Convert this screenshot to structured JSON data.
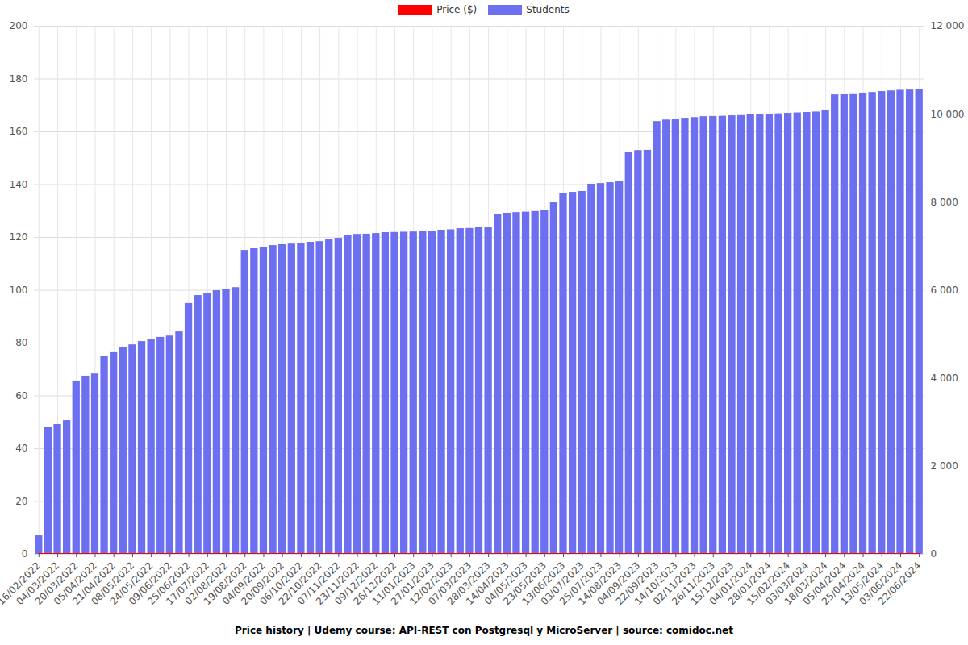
{
  "chart_data": {
    "type": "bar",
    "title": "Price history | Udemy course: API-REST con Postgresql y MicroServer | source: comidoc.net",
    "categories": [
      "16/02/2022",
      null,
      "04/03/2022",
      null,
      "20/03/2022",
      null,
      "05/04/2022",
      null,
      "21/04/2022",
      null,
      "08/05/2022",
      null,
      "24/05/2022",
      null,
      "09/06/2022",
      null,
      "25/06/2022",
      null,
      "17/07/2022",
      null,
      "02/08/2022",
      null,
      "19/08/2022",
      null,
      "04/09/2022",
      null,
      "20/09/2022",
      null,
      "06/10/2022",
      null,
      "22/10/2022",
      null,
      "07/11/2022",
      null,
      "23/11/2022",
      null,
      "09/12/2022",
      null,
      "26/12/2022",
      null,
      "11/01/2023",
      null,
      "27/01/2023",
      null,
      "12/02/2023",
      null,
      "07/03/2023",
      null,
      "28/03/2023",
      null,
      "14/04/2023",
      null,
      "04/05/2023",
      null,
      "23/05/2023",
      null,
      "13/06/2023",
      null,
      "03/07/2023",
      null,
      "25/07/2023",
      null,
      "14/08/2023",
      null,
      "04/09/2023",
      null,
      "22/09/2023",
      null,
      "14/10/2023",
      null,
      "02/11/2023",
      null,
      "26/11/2023",
      null,
      "15/12/2023",
      null,
      "04/01/2024",
      null,
      "28/01/2024",
      null,
      "15/02/2024",
      null,
      "03/03/2024",
      null,
      "18/03/2024",
      null,
      "05/04/2024",
      null,
      "25/04/2024",
      null,
      "13/05/2024",
      null,
      "03/06/2024",
      null,
      "22/06/2024"
    ],
    "series": [
      {
        "name": "Price ($)",
        "type": "line",
        "color": "#ff0000",
        "values": [
          0,
          0,
          0,
          0,
          0,
          0,
          0,
          0,
          0,
          0,
          0,
          0,
          0,
          0,
          0,
          0,
          0,
          0,
          0,
          0,
          0,
          0,
          0,
          0,
          0,
          0,
          0,
          0,
          0,
          0,
          0,
          0,
          0,
          0,
          0,
          0,
          0,
          0,
          0,
          0,
          0,
          0,
          0,
          0,
          0,
          0,
          0,
          0,
          0,
          0,
          0,
          0,
          0,
          0,
          0,
          0,
          0,
          0,
          0,
          0,
          0,
          0,
          0,
          0,
          0,
          0,
          0,
          0,
          0,
          0,
          0,
          0,
          0,
          0,
          0,
          0,
          0,
          0,
          0,
          0,
          0,
          0,
          0,
          0,
          0,
          0,
          0,
          0,
          0,
          0,
          0,
          0,
          0,
          0,
          0
        ]
      },
      {
        "name": "Students",
        "type": "bar",
        "axis": "y2",
        "color": "#6b6ff0",
        "values": [
          420,
          2890,
          2950,
          3040,
          3940,
          4050,
          4100,
          4505,
          4600,
          4690,
          4760,
          4835,
          4890,
          4930,
          4960,
          5055,
          5700,
          5880,
          5935,
          5990,
          6010,
          6060,
          6905,
          6960,
          6980,
          7015,
          7035,
          7050,
          7070,
          7090,
          7105,
          7160,
          7180,
          7250,
          7270,
          7275,
          7290,
          7310,
          7315,
          7320,
          7325,
          7330,
          7345,
          7365,
          7375,
          7400,
          7405,
          7420,
          7435,
          7730,
          7750,
          7765,
          7775,
          7790,
          7805,
          8005,
          8190,
          8225,
          8245,
          8410,
          8425,
          8445,
          8480,
          9140,
          9175,
          9180,
          9835,
          9870,
          9890,
          9910,
          9925,
          9945,
          9950,
          9955,
          9965,
          9970,
          9985,
          9990,
          10000,
          10010,
          10020,
          10030,
          10040,
          10050,
          10090,
          10440,
          10455,
          10465,
          10480,
          10495,
          10515,
          10530,
          10545,
          10550,
          10560
        ]
      }
    ],
    "ylim": [
      0,
      200
    ],
    "yticks": [
      0,
      20,
      40,
      60,
      80,
      100,
      120,
      140,
      160,
      180,
      200
    ],
    "y2lim": [
      0,
      12000
    ],
    "y2ticks": [
      0,
      {
        "value": 2000,
        "label": "2 000"
      },
      {
        "value": 4000,
        "label": "4 000"
      },
      {
        "value": 6000,
        "label": "6 000"
      },
      {
        "value": 8000,
        "label": "8 000"
      },
      {
        "value": 10000,
        "label": "10 000"
      },
      {
        "value": 12000,
        "label": "12 000"
      }
    ],
    "grid": true,
    "legend": "top"
  }
}
